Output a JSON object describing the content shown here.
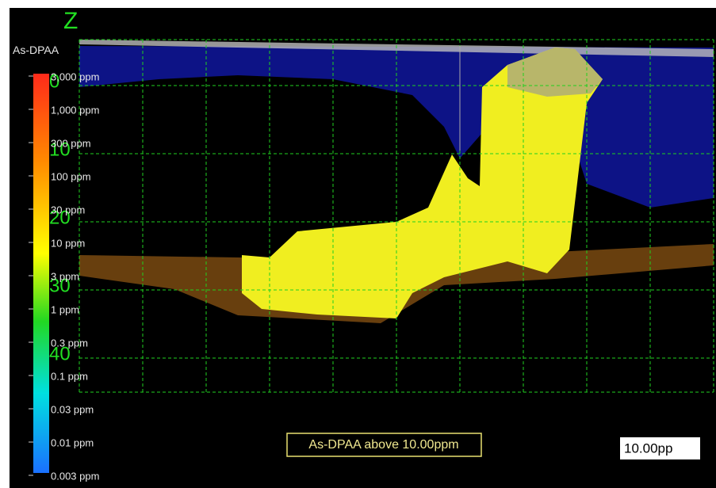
{
  "viewer": {
    "axis": {
      "label": "Z",
      "ticks": [
        0,
        10,
        20,
        30,
        40
      ]
    },
    "legend": {
      "title": "As-DPAA",
      "labels": [
        "3,000 ppm",
        "1,000 ppm",
        "300 ppm",
        "100 ppm",
        "30 ppm",
        "10 ppm",
        "3 ppm",
        "1 ppm",
        "0.3 ppm",
        "0.1 ppm",
        "0.03 ppm",
        "0.01 ppm",
        "0.003 ppm"
      ]
    },
    "caption": "As-DPAA above 10.00ppm",
    "threshold_box": "10.00pp"
  }
}
